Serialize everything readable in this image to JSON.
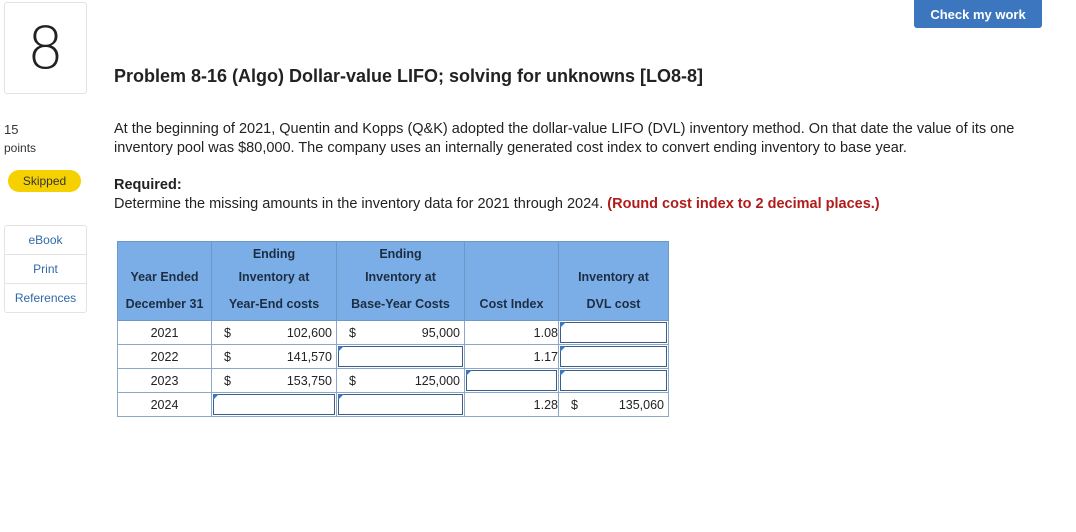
{
  "question": {
    "number": "8",
    "points_value": "15",
    "points_label": "points",
    "status": "Skipped"
  },
  "sidebar": {
    "items": [
      {
        "label": "eBook"
      },
      {
        "label": "Print"
      },
      {
        "label": "References"
      }
    ]
  },
  "toolbar": {
    "check_label": "Check my work"
  },
  "problem": {
    "title": "Problem 8-16 (Algo) Dollar-value LIFO; solving for unknowns [LO8-8]",
    "paragraph": "At the beginning of 2021, Quentin and Kopps (Q&K) adopted the dollar-value LIFO (DVL) inventory method. On that date the value of its one inventory pool was $80,000. The company uses an internally generated cost index to convert ending inventory to base year.",
    "required_heading": "Required:",
    "required_text": "Determine the missing amounts in the inventory data for 2021 through 2024.",
    "required_note": "(Round cost index to 2 decimal places.)"
  },
  "table": {
    "headers": {
      "row1": [
        "",
        "Ending",
        "Ending",
        "",
        ""
      ],
      "row2": [
        "Year Ended",
        "Inventory at",
        "Inventory at",
        "",
        "Inventory at"
      ],
      "row3": [
        "December 31",
        "Year-End costs",
        "Base-Year Costs",
        "Cost Index",
        "DVL cost"
      ]
    },
    "currency_symbol": "$",
    "rows": [
      {
        "year": "2021",
        "ye_cost": "102,600",
        "base_cost": "95,000",
        "index": "1.08",
        "dvl": ""
      },
      {
        "year": "2022",
        "ye_cost": "141,570",
        "base_cost": "",
        "index": "1.17",
        "dvl": ""
      },
      {
        "year": "2023",
        "ye_cost": "153,750",
        "base_cost": "125,000",
        "index": "",
        "dvl": ""
      },
      {
        "year": "2024",
        "ye_cost": "",
        "base_cost": "",
        "index": "1.28",
        "dvl": "135,060"
      }
    ]
  }
}
